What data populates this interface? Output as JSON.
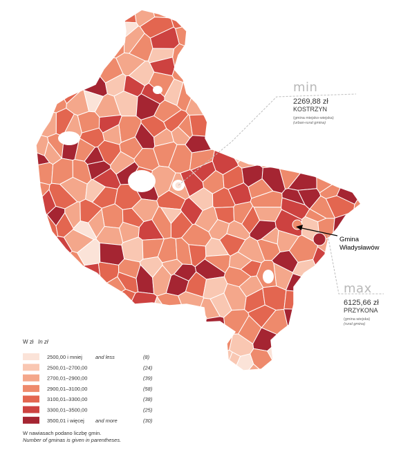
{
  "legend": {
    "title": "W zł",
    "title_en": "In zł",
    "classes": [
      {
        "label": "2500,00 i mniej",
        "label_en": "and less",
        "count": "(8)",
        "color": "#fbe3d8"
      },
      {
        "label": "2500,01–2700,00",
        "label_en": "",
        "count": "(24)",
        "color": "#f9c7b2"
      },
      {
        "label": "2700,01–2900,00",
        "label_en": "",
        "count": "(39)",
        "color": "#f4a78b"
      },
      {
        "label": "2900,01–3100,00",
        "label_en": "",
        "count": "(58)",
        "color": "#ee8a6c"
      },
      {
        "label": "3100,01–3300,00",
        "label_en": "",
        "count": "(38)",
        "color": "#e36650"
      },
      {
        "label": "3300,01–3500,00",
        "label_en": "",
        "count": "(25)",
        "color": "#cd4240"
      },
      {
        "label": "3500,01 i więcej",
        "label_en": "and more",
        "count": "(30)",
        "color": "#a52532"
      }
    ],
    "note_pl": "W nawiasach podano liczbę gmin.",
    "note_en": "Number of gminas is given in parentheses."
  },
  "callouts": {
    "min": {
      "heading": "min",
      "value": "2269,88 zł",
      "name": "KOSTRZYN",
      "type_pl": "(gmina miejsko-wiejska)",
      "type_en": "(urban-rural gmina)"
    },
    "max": {
      "heading": "max",
      "value": "6125,66 zł",
      "name": "PRZYKONA",
      "type_pl": "(gmina wiejska)",
      "type_en": "(rural gmina)"
    }
  },
  "annotation": {
    "line1": "Gmina",
    "line2": "Władysławów"
  },
  "map": {
    "seed": 20231,
    "white_areas": 5
  }
}
